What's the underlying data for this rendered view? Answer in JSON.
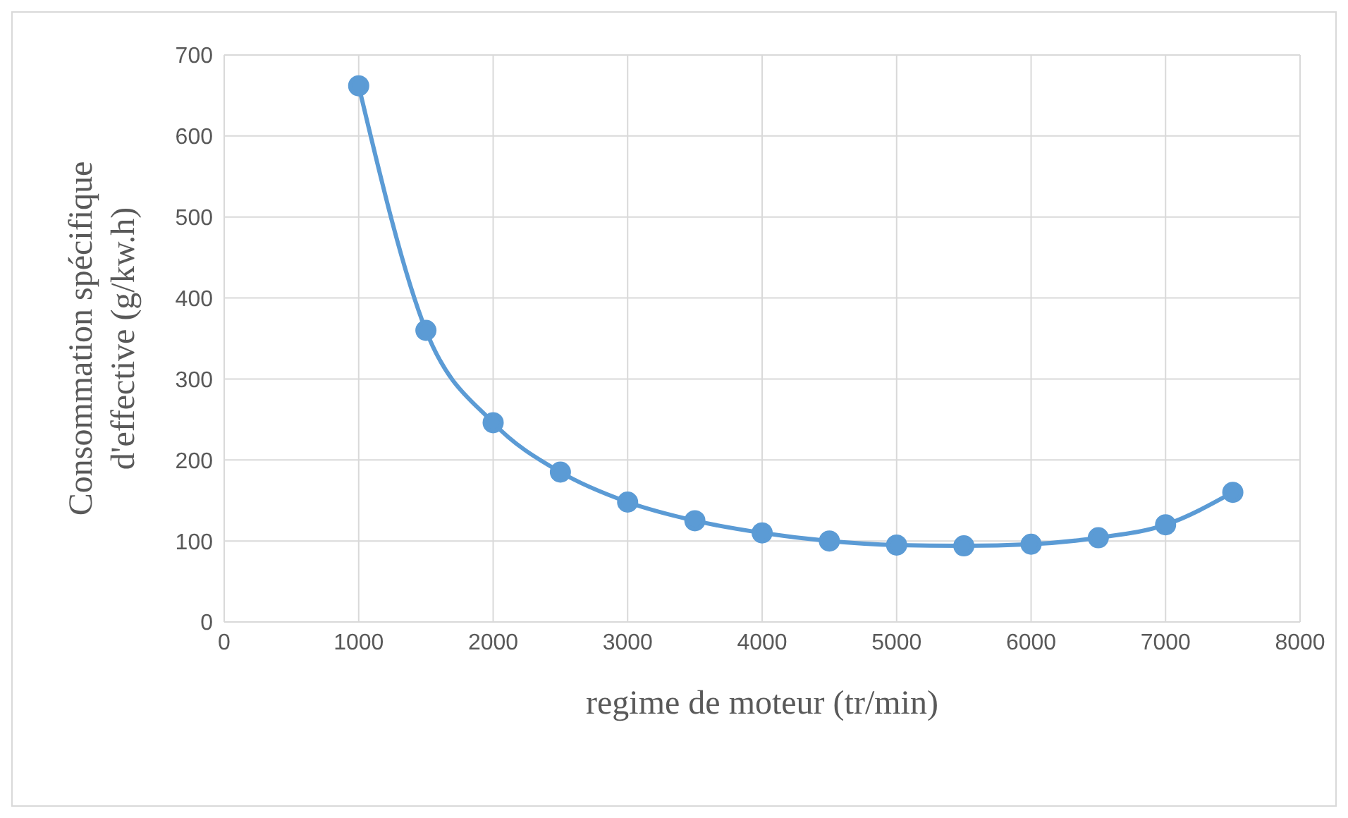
{
  "chart_data": {
    "type": "line",
    "xlabel": "regime de moteur (tr/min)",
    "ylabel": "Consommation spécifique d'effective (g/kw.h)",
    "x": [
      1000,
      1500,
      2000,
      2500,
      3000,
      3500,
      4000,
      4500,
      5000,
      5500,
      6000,
      6500,
      7000,
      7500
    ],
    "series": [
      {
        "color": "#5b9bd5",
        "values": [
          662,
          360,
          246,
          185,
          148,
          125,
          110,
          100,
          95,
          94,
          96,
          104,
          120,
          160
        ]
      }
    ],
    "xlim": [
      0,
      8000
    ],
    "xticks": [
      0,
      1000,
      2000,
      3000,
      4000,
      5000,
      6000,
      7000,
      8000
    ],
    "ylim": [
      0,
      700
    ],
    "yticks": [
      0,
      100,
      200,
      300,
      400,
      500,
      600,
      700
    ],
    "grid": true,
    "legend": false,
    "marker": "circle",
    "line_style": "solid"
  }
}
